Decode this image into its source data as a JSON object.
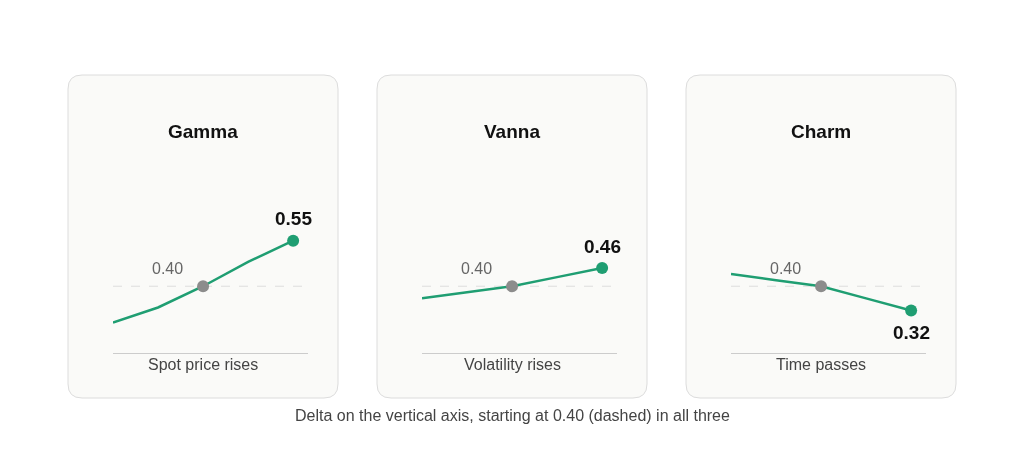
{
  "chart_data": [
    {
      "type": "line",
      "title": "Gamma",
      "xlabel": "Spot price rises",
      "categories": [
        null,
        null,
        null,
        null,
        null
      ],
      "tick_labels": false,
      "series": [
        {
          "color": "#1f9e72",
          "values": [
            0.28,
            0.33,
            0.4,
            0.48,
            0.55
          ],
          "colors": [
            null,
            null,
            "#8c8c8c",
            null,
            "#1f9e72"
          ],
          "value_labels": [
            null,
            null,
            "0.40",
            null,
            "0.55"
          ]
        }
      ],
      "ref_lines": [
        {
          "axis": "y",
          "value": 0.4,
          "color": "#dddddd",
          "line_style": "dashed"
        }
      ],
      "annotations": [
        "Delta on the vertical axis, starting at 0.40 (dashed) in all three"
      ]
    },
    {
      "type": "line",
      "title": "Vanna",
      "xlabel": "Volatility rises",
      "categories": [
        null,
        null,
        null,
        null,
        null
      ],
      "tick_labels": false,
      "series": [
        {
          "color": "#1f9e72",
          "values": [
            0.36,
            0.38,
            0.4,
            0.43,
            0.46
          ],
          "colors": [
            null,
            null,
            "#8c8c8c",
            null,
            "#1f9e72"
          ],
          "value_labels": [
            null,
            null,
            "0.40",
            null,
            "0.46"
          ]
        }
      ],
      "ref_lines": [
        {
          "axis": "y",
          "value": 0.4,
          "color": "#dddddd",
          "line_style": "dashed"
        }
      ]
    },
    {
      "type": "line",
      "title": "Charm",
      "xlabel": "Time passes",
      "categories": [
        null,
        null,
        null,
        null,
        null
      ],
      "tick_labels": false,
      "series": [
        {
          "color": "#1f9e72",
          "values": [
            0.44,
            0.42,
            0.4,
            0.36,
            0.32
          ],
          "colors": [
            null,
            null,
            "#8c8c8c",
            null,
            "#1f9e72"
          ],
          "value_labels": [
            null,
            null,
            "0.40",
            null,
            "0.32"
          ]
        }
      ],
      "ref_lines": [
        {
          "axis": "y",
          "value": 0.4,
          "color": "#dddddd",
          "line_style": "dashed"
        }
      ]
    }
  ]
}
